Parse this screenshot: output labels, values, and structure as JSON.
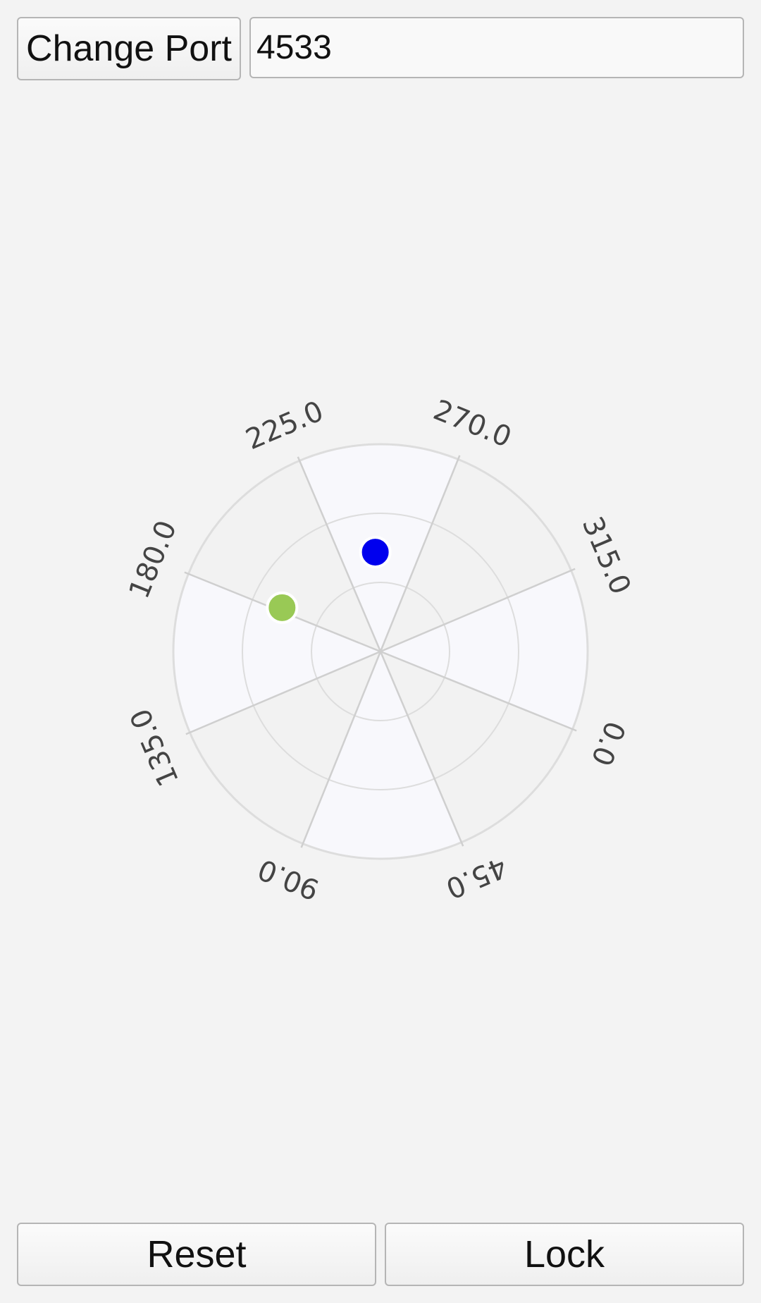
{
  "toolbar": {
    "change_port_label": "Change Port",
    "port_value": "4533"
  },
  "chart_data": {
    "type": "polar",
    "angle_labels": [
      "0.0",
      "45.0",
      "90.0",
      "135.0",
      "180.0",
      "225.0",
      "270.0",
      "315.0"
    ],
    "rings": 3,
    "rotation_offset_deg": 22,
    "series": [
      {
        "color": "#0000ee",
        "azimuth": 245,
        "radius_fraction": 0.48
      },
      {
        "color": "#99c955",
        "azimuth": 182,
        "radius_fraction": 0.52
      }
    ]
  },
  "footer": {
    "reset_label": "Reset",
    "lock_label": "Lock"
  }
}
